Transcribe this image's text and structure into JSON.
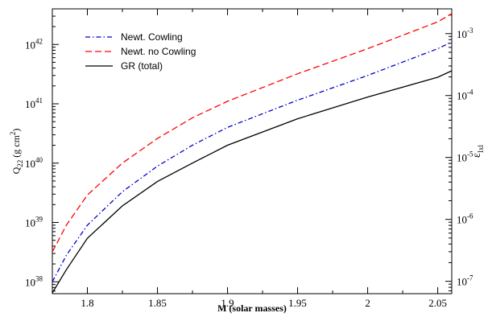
{
  "chart_data": {
    "type": "line",
    "xlabel": "M (solar masses)",
    "ylabel_left": {
      "base": "Q",
      "sub": "22",
      "unit_open": " (g cm",
      "unit_sup": "2",
      "unit_close": ")"
    },
    "ylabel_right": {
      "base": "ε",
      "sub": "Ixl"
    },
    "xlim": [
      1.775,
      2.06
    ],
    "ylim_left_log10": [
      37.8,
      42.6
    ],
    "ylim_right_log10": [
      -7.2,
      -2.6
    ],
    "x_ticks": [
      {
        "value": 1.8,
        "label": "1.8"
      },
      {
        "value": 1.85,
        "label": "1.85"
      },
      {
        "value": 1.9,
        "label": "1.9"
      },
      {
        "value": 1.95,
        "label": "1.95"
      },
      {
        "value": 2.0,
        "label": "2"
      },
      {
        "value": 2.05,
        "label": "2.05"
      }
    ],
    "y_left_ticks": [
      {
        "exp": 38,
        "base": "10",
        "sup": "38"
      },
      {
        "exp": 39,
        "base": "10",
        "sup": "39"
      },
      {
        "exp": 40,
        "base": "10",
        "sup": "40"
      },
      {
        "exp": 41,
        "base": "10",
        "sup": "41"
      },
      {
        "exp": 42,
        "base": "10",
        "sup": "42"
      }
    ],
    "y_right_ticks": [
      {
        "exp": -7,
        "base": "10",
        "sup": "-7"
      },
      {
        "exp": -6,
        "base": "10",
        "sup": "-6"
      },
      {
        "exp": -5,
        "base": "10",
        "sup": "-5"
      },
      {
        "exp": -4,
        "base": "10",
        "sup": "-4"
      },
      {
        "exp": -3,
        "base": "10",
        "sup": "-3"
      }
    ],
    "legend_position": "top-left",
    "grid": false,
    "series": [
      {
        "name": "Newt. Cowling",
        "color": "#0000cc",
        "dash": "dash-dot",
        "x": [
          1.775,
          1.785,
          1.8,
          1.825,
          1.85,
          1.875,
          1.9,
          1.95,
          2.0,
          2.05,
          2.06
        ],
        "y": [
          1e+38,
          2.8e+38,
          9e+38,
          3.3e+39,
          8.9e+39,
          2e+40,
          4e+40,
          1.15e+41,
          3e+41,
          8.5e+41,
          1.1e+42
        ]
      },
      {
        "name": "Newt. no Cowling",
        "color": "#ff0000",
        "dash": "dashed",
        "x": [
          1.775,
          1.785,
          1.8,
          1.825,
          1.85,
          1.875,
          1.9,
          1.95,
          2.0,
          2.05,
          2.06
        ],
        "y": [
          3.2e+38,
          9e+38,
          2.9e+39,
          1e+40,
          2.6e+40,
          5.8e+40,
          1.1e+41,
          3.2e+41,
          8.5e+41,
          2.4e+42,
          3.3e+42
        ]
      },
      {
        "name": "GR (total)",
        "color": "#000000",
        "dash": "solid",
        "x": [
          1.775,
          1.785,
          1.8,
          1.825,
          1.85,
          1.875,
          1.9,
          1.95,
          2.0,
          2.05,
          2.06
        ],
        "y": [
          6.5e+37,
          1.6e+38,
          5.4e+38,
          1.9e+39,
          4.9e+39,
          1e+40,
          2e+40,
          5.6e+40,
          1.3e+41,
          2.8e+41,
          3.6e+41
        ]
      }
    ]
  }
}
